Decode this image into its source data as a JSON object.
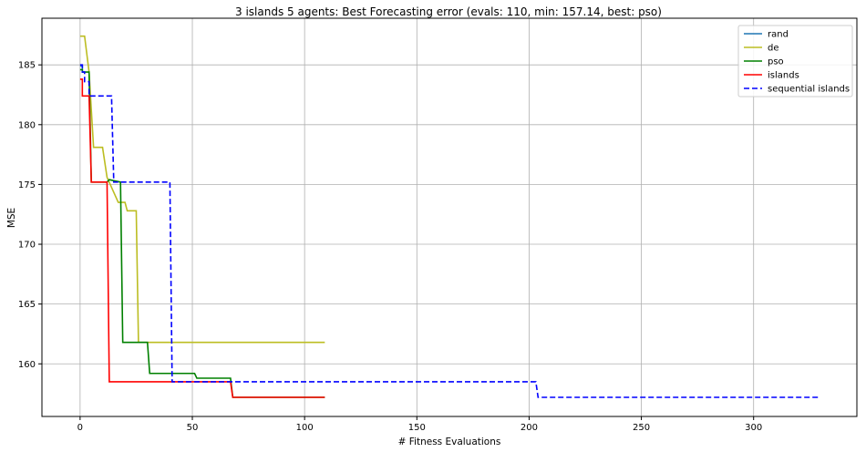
{
  "chart_data": {
    "type": "line",
    "title": "3 islands 5 agents: Best Forecasting error (evals: 110, min: 157.14, best: pso)",
    "xlabel": "# Fitness Evaluations",
    "ylabel": "MSE",
    "xlim": [
      -17,
      346
    ],
    "ylim": [
      155.6,
      188.9
    ],
    "xticks": [
      0,
      50,
      100,
      150,
      200,
      250,
      300
    ],
    "yticks": [
      160,
      165,
      170,
      175,
      180,
      185
    ],
    "grid": true,
    "legend_position": "top-right",
    "series": [
      {
        "name": "rand",
        "color": "#1f77b4",
        "dashed": false,
        "x": [
          0,
          1,
          1,
          2
        ],
        "y": [
          184.9,
          184.9,
          184.4,
          184.4
        ]
      },
      {
        "name": "de",
        "color": "#bcbd22",
        "dashed": false,
        "x": [
          0,
          2,
          2,
          4,
          4,
          6,
          6,
          10,
          10,
          12,
          12,
          17,
          17,
          20,
          20,
          21,
          21,
          25,
          25,
          26,
          26,
          109
        ],
        "y": [
          187.4,
          187.4,
          187.4,
          184.4,
          184.4,
          178.1,
          178.1,
          178.1,
          178.1,
          175.6,
          175.6,
          173.5,
          173.5,
          173.5,
          173.5,
          172.8,
          172.8,
          172.8,
          172.8,
          161.8,
          161.8,
          161.8
        ]
      },
      {
        "name": "pso",
        "color": "#008000",
        "dashed": false,
        "x": [
          0,
          1,
          1,
          4,
          4,
          5,
          5,
          12,
          12,
          13,
          13,
          18,
          18,
          19,
          19,
          30,
          30,
          31,
          31,
          51,
          51,
          52,
          52,
          67,
          67,
          68,
          68,
          109
        ],
        "y": [
          184.6,
          184.6,
          184.4,
          184.4,
          184.4,
          175.2,
          175.2,
          175.2,
          175.2,
          175.4,
          175.4,
          175.2,
          175.2,
          161.8,
          161.8,
          161.8,
          161.8,
          159.2,
          159.2,
          159.2,
          159.2,
          158.8,
          158.8,
          158.8,
          158.8,
          157.2,
          157.2,
          157.2
        ]
      },
      {
        "name": "islands",
        "color": "#ff0000",
        "dashed": false,
        "x": [
          0,
          1,
          1,
          4,
          4,
          5,
          5,
          12,
          12,
          13,
          13,
          67,
          67,
          68,
          68,
          109
        ],
        "y": [
          183.8,
          183.8,
          182.4,
          182.4,
          182.4,
          175.2,
          175.2,
          175.2,
          175.2,
          158.5,
          158.5,
          158.5,
          158.5,
          157.2,
          157.2,
          157.2
        ]
      },
      {
        "name": "sequential islands",
        "color": "#0000ff",
        "dashed": true,
        "x": [
          0,
          1,
          1,
          2,
          2,
          4,
          4,
          14,
          14,
          15,
          15,
          40,
          40,
          41,
          41,
          203,
          203,
          204,
          204,
          329
        ],
        "y": [
          185.0,
          185.0,
          184.4,
          184.4,
          183.6,
          183.6,
          182.4,
          182.4,
          182.4,
          175.2,
          175.2,
          175.2,
          175.2,
          158.5,
          158.5,
          158.5,
          158.5,
          157.2,
          157.2,
          157.2
        ]
      }
    ]
  }
}
